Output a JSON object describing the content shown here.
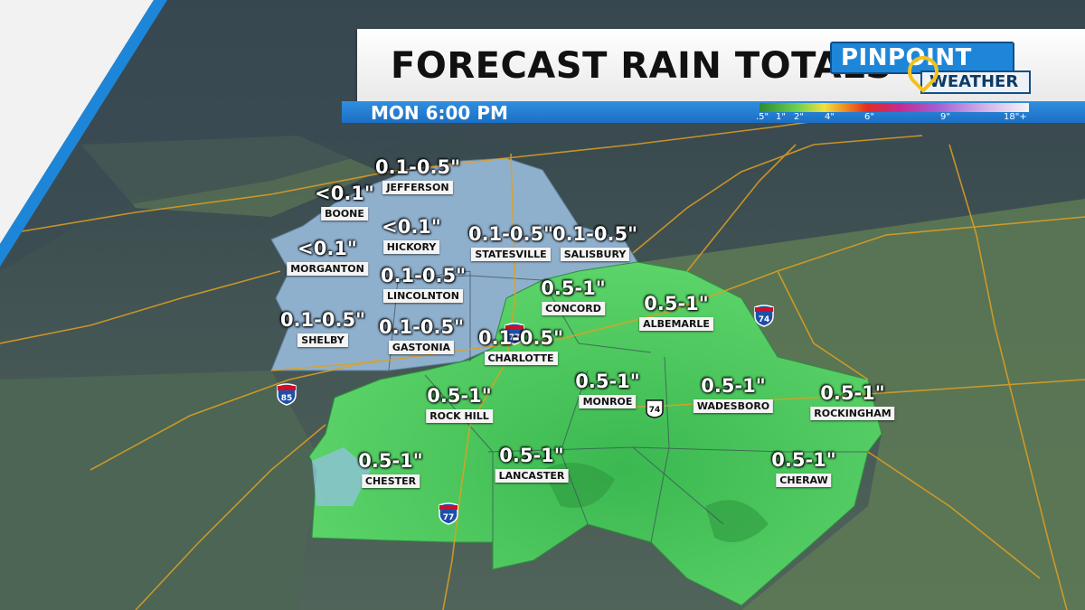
{
  "header": {
    "title": "FORECAST RAIN TOTALS",
    "time": "MON 6:00 PM"
  },
  "logo": {
    "top_text": "PINPOINT",
    "bottom_text": "WEATHER"
  },
  "legend": {
    "ticks": [
      ".5\"",
      "1\"",
      "2\"",
      "4\"",
      "6\"",
      "9\"",
      "18\"+"
    ]
  },
  "highways": [
    "77",
    "74",
    "85",
    "77",
    "74"
  ],
  "cities": [
    {
      "name": "JEFFERSON",
      "amount": "0.1-0.5\""
    },
    {
      "name": "BOONE",
      "amount": "<0.1\""
    },
    {
      "name": "HICKORY",
      "amount": "<0.1\""
    },
    {
      "name": "MORGANTON",
      "amount": "<0.1\""
    },
    {
      "name": "STATESVILLE",
      "amount": "0.1-0.5\""
    },
    {
      "name": "SALISBURY",
      "amount": "0.1-0.5\""
    },
    {
      "name": "LINCOLNTON",
      "amount": "0.1-0.5\""
    },
    {
      "name": "SHELBY",
      "amount": "0.1-0.5\""
    },
    {
      "name": "GASTONIA",
      "amount": "0.1-0.5\""
    },
    {
      "name": "CONCORD",
      "amount": "0.5-1\""
    },
    {
      "name": "ALBEMARLE",
      "amount": "0.5-1\""
    },
    {
      "name": "CHARLOTTE",
      "amount": "0.1-0.5\""
    },
    {
      "name": "MONROE",
      "amount": "0.5-1\""
    },
    {
      "name": "WADESBORO",
      "amount": "0.5-1\""
    },
    {
      "name": "ROCKINGHAM",
      "amount": "0.5-1\""
    },
    {
      "name": "ROCK HILL",
      "amount": "0.5-1\""
    },
    {
      "name": "CHESTER",
      "amount": "0.5-1\""
    },
    {
      "name": "LANCASTER",
      "amount": "0.5-1\""
    },
    {
      "name": "CHERAW",
      "amount": "0.5-1\""
    }
  ],
  "colors": {
    "terrain": "#4d6158",
    "dry_region": "#8fb2cf",
    "wet_region": "#4fcf64",
    "roads": "#e0a021",
    "accent_blue": "#1e86d8"
  }
}
